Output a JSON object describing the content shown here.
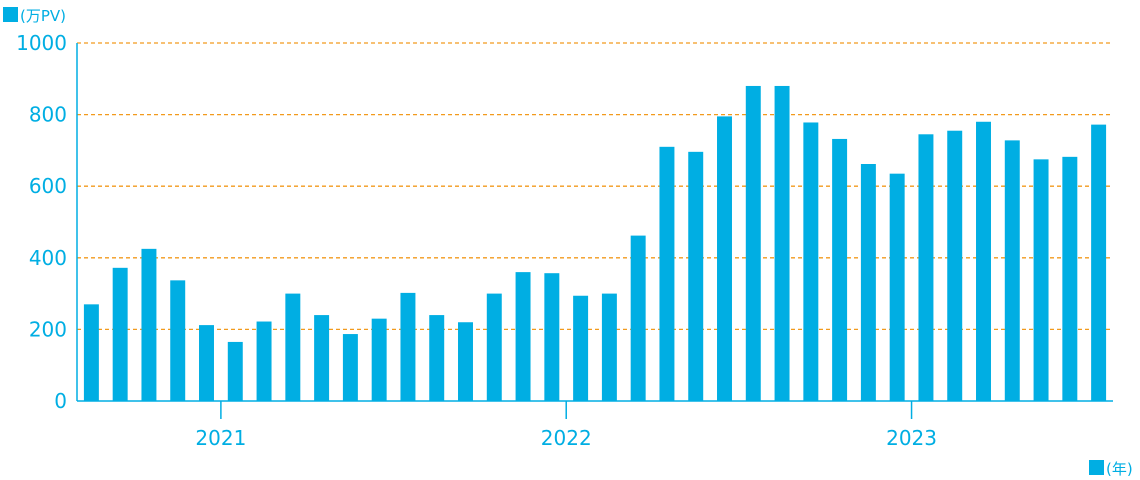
{
  "chart_data": {
    "type": "bar",
    "y_unit_label": "(万PV)",
    "x_unit_label": "(年)",
    "ylim": [
      0,
      1000
    ],
    "y_ticks": [
      0,
      200,
      400,
      600,
      800,
      1000
    ],
    "grid": true,
    "x_tick_labels": [
      "2021",
      "2022",
      "2023"
    ],
    "x_tick_indices": [
      5,
      17,
      29
    ],
    "values": [
      270,
      372,
      425,
      337,
      212,
      165,
      222,
      300,
      240,
      187,
      230,
      302,
      240,
      220,
      300,
      360,
      357,
      294,
      300,
      462,
      710,
      696,
      795,
      880,
      880,
      778,
      732,
      662,
      635,
      745,
      755,
      780,
      728,
      675,
      682,
      772
    ],
    "colors": {
      "bar": "#00aee3",
      "axis": "#00aee3",
      "text": "#00aee3",
      "grid": "#f29a1d"
    }
  }
}
